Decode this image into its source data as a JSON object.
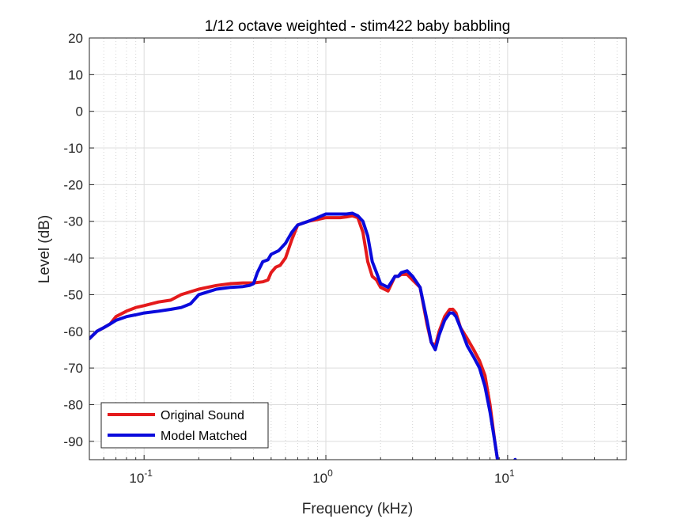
{
  "chart_data": {
    "type": "line",
    "title": "1/12 octave weighted - stim422 baby babbling",
    "xlabel": "Frequency (kHz)",
    "ylabel": "Level (dB)",
    "xscale": "log",
    "xlim": [
      0.05,
      45
    ],
    "ylim": [
      -95,
      20
    ],
    "yticks": [
      20,
      10,
      0,
      -10,
      -20,
      -30,
      -40,
      -50,
      -60,
      -70,
      -80,
      -90
    ],
    "xticks": [
      {
        "value": 0.1,
        "base": "10",
        "exp": "-1"
      },
      {
        "value": 1,
        "base": "10",
        "exp": "0"
      },
      {
        "value": 10,
        "base": "10",
        "exp": "1"
      }
    ],
    "grid": true,
    "minor_grid": true,
    "legend": "bottom-left",
    "series": [
      {
        "name": "Original Sound",
        "color": "#e41a1c",
        "x": [
          0.05,
          0.055,
          0.06,
          0.065,
          0.07,
          0.08,
          0.09,
          0.1,
          0.12,
          0.14,
          0.16,
          0.2,
          0.25,
          0.3,
          0.35,
          0.4,
          0.45,
          0.48,
          0.5,
          0.53,
          0.56,
          0.6,
          0.65,
          0.7,
          0.8,
          0.9,
          1.0,
          1.1,
          1.2,
          1.3,
          1.4,
          1.5,
          1.6,
          1.7,
          1.8,
          1.9,
          2.0,
          2.2,
          2.4,
          2.5,
          2.6,
          2.8,
          3.0,
          3.3,
          3.6,
          3.8,
          4.0,
          4.2,
          4.5,
          4.8,
          5.0,
          5.2,
          5.5,
          6.0,
          6.5,
          7.0,
          7.5,
          8.0,
          8.5,
          8.8,
          9.0
        ],
        "values": [
          -62,
          -60,
          -59,
          -58,
          -56,
          -54.5,
          -53.5,
          -53,
          -52,
          -51.5,
          -50,
          -48.5,
          -47.5,
          -47,
          -46.8,
          -46.8,
          -46.5,
          -46,
          -44,
          -42.5,
          -42,
          -40,
          -35,
          -31,
          -30,
          -29.5,
          -29,
          -29,
          -29,
          -28.8,
          -28.5,
          -29,
          -33,
          -41,
          -45,
          -46,
          -48,
          -49,
          -45,
          -45,
          -44.5,
          -44.5,
          -46,
          -48,
          -58,
          -63,
          -64,
          -60,
          -56,
          -54,
          -54,
          -55,
          -59,
          -62,
          -65,
          -68,
          -72,
          -80,
          -90,
          -95,
          -96
        ]
      },
      {
        "name": "Model Matched",
        "color": "#0a0adc",
        "x": [
          0.05,
          0.055,
          0.06,
          0.065,
          0.07,
          0.08,
          0.09,
          0.1,
          0.12,
          0.14,
          0.16,
          0.18,
          0.2,
          0.25,
          0.3,
          0.35,
          0.38,
          0.4,
          0.42,
          0.45,
          0.48,
          0.5,
          0.55,
          0.6,
          0.65,
          0.7,
          0.8,
          0.9,
          1.0,
          1.1,
          1.2,
          1.3,
          1.4,
          1.5,
          1.6,
          1.7,
          1.8,
          1.9,
          2.0,
          2.2,
          2.4,
          2.5,
          2.6,
          2.8,
          3.0,
          3.3,
          3.6,
          3.8,
          4.0,
          4.2,
          4.5,
          4.8,
          5.0,
          5.2,
          5.5,
          6.0,
          6.5,
          7.0,
          7.5,
          8.0,
          8.5,
          8.8,
          9.0
        ],
        "values": [
          -62,
          -60,
          -59,
          -58,
          -57,
          -56,
          -55.5,
          -55,
          -54.5,
          -54,
          -53.5,
          -52.5,
          -50,
          -48.5,
          -48,
          -47.8,
          -47.5,
          -47,
          -44,
          -41,
          -40.5,
          -39,
          -38,
          -36,
          -33,
          -31,
          -30,
          -29,
          -28,
          -28,
          -28,
          -28,
          -27.8,
          -28.5,
          -30,
          -34,
          -41,
          -44,
          -47,
          -48,
          -45,
          -45,
          -44,
          -43.5,
          -45,
          -48,
          -57,
          -63,
          -65,
          -61,
          -57,
          -55,
          -55,
          -56,
          -59,
          -64,
          -67,
          -70,
          -75,
          -82,
          -90,
          -95,
          -96
        ]
      }
    ],
    "stray_marker": {
      "x": 11,
      "y": -95
    }
  }
}
